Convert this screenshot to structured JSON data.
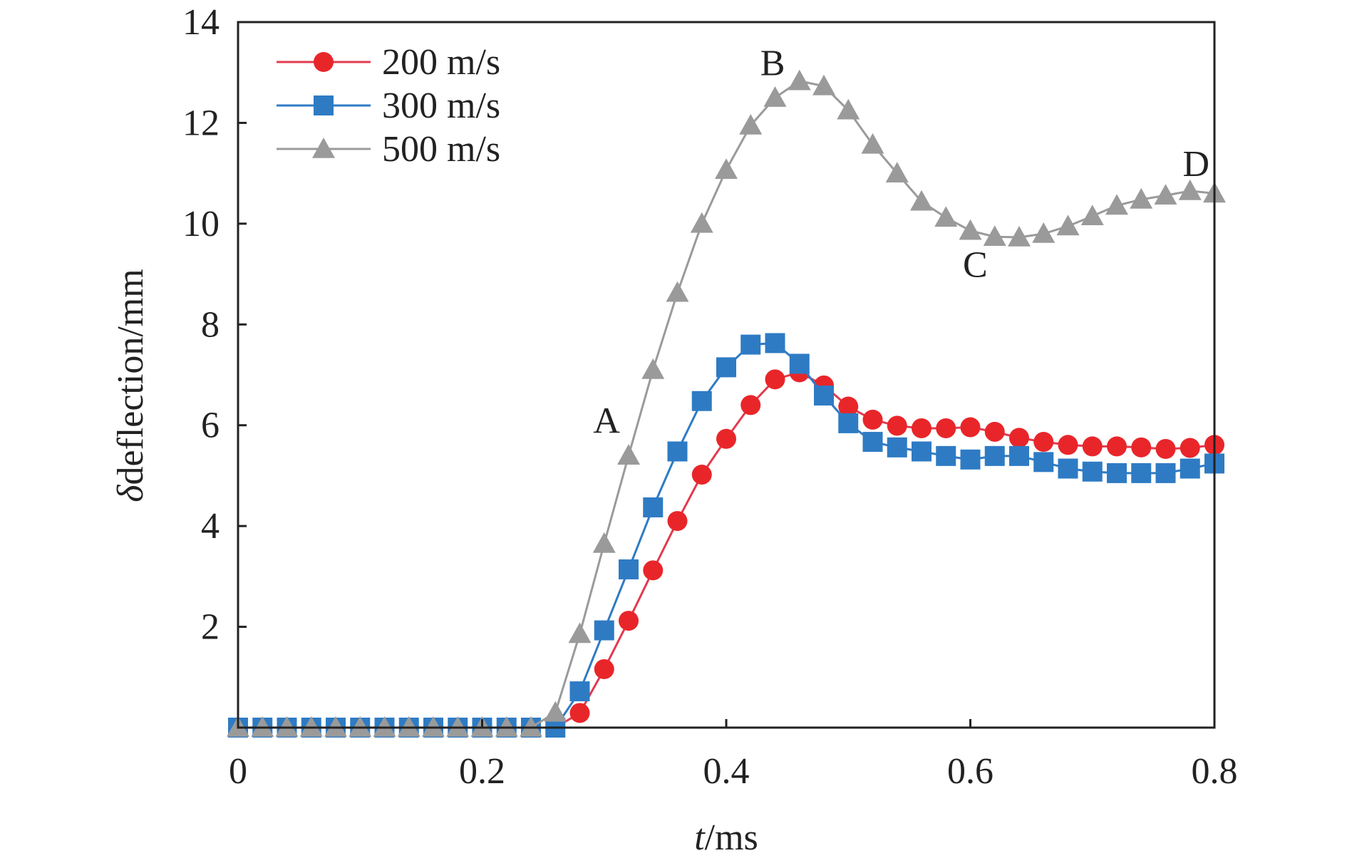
{
  "chart_data": {
    "type": "line",
    "title": "",
    "xlabel": {
      "italic": "t",
      "rest": "/ms"
    },
    "ylabel": {
      "italic": "δ",
      "rest": "deflection/mm"
    },
    "xlim": [
      0,
      0.8
    ],
    "ylim": [
      0,
      14
    ],
    "xticks": [
      0,
      0.2,
      0.4,
      0.6,
      0.8
    ],
    "xtick_labels": [
      "0",
      "0.2",
      "0.4",
      "0.6",
      "0.8"
    ],
    "yticks": [
      2,
      4,
      6,
      8,
      10,
      12,
      14
    ],
    "ytick_labels": [
      "2",
      "4",
      "6",
      "8",
      "10",
      "12",
      "14"
    ],
    "grid": false,
    "legend_placement": "top-left",
    "x": [
      0,
      0.02,
      0.04,
      0.06,
      0.08,
      0.1,
      0.12,
      0.14,
      0.16,
      0.18,
      0.2,
      0.22,
      0.24,
      0.26,
      0.28,
      0.3,
      0.32,
      0.34,
      0.36,
      0.38,
      0.4,
      0.42,
      0.44,
      0.46,
      0.48,
      0.5,
      0.52,
      0.54,
      0.56,
      0.58,
      0.6,
      0.62,
      0.64,
      0.66,
      0.68,
      0.7,
      0.72,
      0.74,
      0.76,
      0.78,
      0.8
    ],
    "series": [
      {
        "name": "200 m/s",
        "color": "#e8262a",
        "line_color": "#e23a4e",
        "marker": "circle",
        "values": [
          0,
          0,
          0,
          0,
          0,
          0,
          0,
          0,
          0,
          0,
          0,
          0,
          0,
          0,
          0.29,
          1.16,
          2.12,
          3.12,
          4.1,
          5.02,
          5.73,
          6.4,
          6.91,
          7.05,
          6.79,
          6.37,
          6.11,
          5.99,
          5.94,
          5.94,
          5.96,
          5.87,
          5.75,
          5.67,
          5.61,
          5.58,
          5.58,
          5.56,
          5.53,
          5.55,
          5.61
        ]
      },
      {
        "name": "300 m/s",
        "color": "#2e7bc4",
        "line_color": "#2e7bc4",
        "marker": "square",
        "values": [
          0,
          0,
          0,
          0,
          0,
          0,
          0,
          0,
          0,
          0,
          0,
          0,
          0,
          0,
          0.72,
          1.93,
          3.14,
          4.37,
          5.48,
          6.48,
          7.15,
          7.6,
          7.63,
          7.22,
          6.59,
          6.04,
          5.67,
          5.56,
          5.48,
          5.39,
          5.32,
          5.39,
          5.39,
          5.27,
          5.14,
          5.08,
          5.05,
          5.05,
          5.05,
          5.14,
          5.24
        ]
      },
      {
        "name": "500 m/s",
        "color": "#9a9a9a",
        "line_color": "#9a9a9a",
        "marker": "triangle",
        "values": [
          0,
          0,
          0,
          0,
          0,
          0,
          0,
          0,
          0,
          0,
          0,
          0,
          0,
          0.3,
          1.86,
          3.65,
          5.4,
          7.1,
          8.63,
          10.0,
          11.07,
          11.95,
          12.5,
          12.83,
          12.73,
          12.25,
          11.57,
          11.0,
          10.44,
          10.12,
          9.86,
          9.74,
          9.73,
          9.8,
          9.95,
          10.15,
          10.36,
          10.48,
          10.56,
          10.65,
          10.6
        ]
      }
    ],
    "annotations": [
      {
        "text": "A",
        "x": 0.302,
        "y": 6.1
      },
      {
        "text": "B",
        "x": 0.438,
        "y": 13.2
      },
      {
        "text": "C",
        "x": 0.604,
        "y": 9.2
      },
      {
        "text": "D",
        "x": 0.785,
        "y": 11.2
      }
    ]
  }
}
